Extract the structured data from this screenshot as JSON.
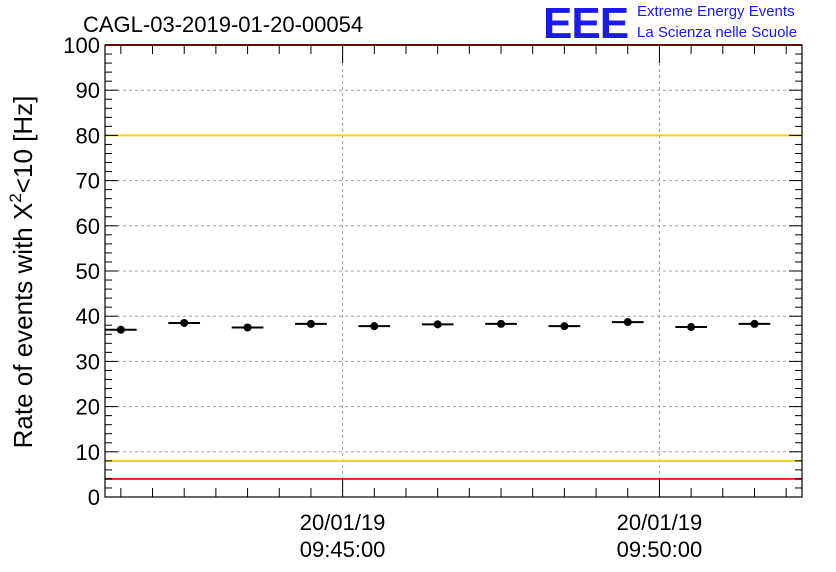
{
  "chart_data": {
    "type": "scatter",
    "title": "CAGL-03-2019-01-20-00054",
    "ylabel_main": "Rate of events with ",
    "ylabel_sym": "X",
    "ylabel_sup": "2",
    "ylabel_tail": "<10 [Hz]",
    "xlabel": "",
    "ylim": [
      0,
      100
    ],
    "y_ticks": [
      "0",
      "10",
      "20",
      "30",
      "40",
      "50",
      "60",
      "70",
      "80",
      "90",
      "100"
    ],
    "x_ticks": [
      {
        "date": "20/01/19",
        "time": "09:45:00",
        "minute": 45
      },
      {
        "date": "20/01/19",
        "time": "09:50:00",
        "minute": 50
      }
    ],
    "xlim_minutes": [
      41.25,
      52.25
    ],
    "grid": true,
    "reference_lines": [
      {
        "value": 100,
        "color": "#e8231d"
      },
      {
        "value": 80,
        "color": "#f2d11c"
      },
      {
        "value": 8,
        "color": "#f2d11c"
      },
      {
        "value": 4,
        "color": "#e8231d"
      }
    ],
    "points": [
      {
        "x_start": 41.25,
        "x_end": 41.75,
        "y": 37.0
      },
      {
        "x_start": 42.25,
        "x_end": 42.75,
        "y": 38.5
      },
      {
        "x_start": 43.25,
        "x_end": 43.75,
        "y": 37.5
      },
      {
        "x_start": 44.25,
        "x_end": 44.75,
        "y": 38.3
      },
      {
        "x_start": 45.25,
        "x_end": 45.75,
        "y": 37.8
      },
      {
        "x_start": 46.25,
        "x_end": 46.75,
        "y": 38.2
      },
      {
        "x_start": 47.25,
        "x_end": 47.75,
        "y": 38.3
      },
      {
        "x_start": 48.25,
        "x_end": 48.75,
        "y": 37.8
      },
      {
        "x_start": 49.25,
        "x_end": 49.75,
        "y": 38.7
      },
      {
        "x_start": 50.25,
        "x_end": 50.75,
        "y": 37.6
      },
      {
        "x_start": 51.25,
        "x_end": 51.75,
        "y": 38.3
      }
    ],
    "marker_color": "#000000"
  },
  "logo": {
    "text": "EEE",
    "line1": "Extreme Energy Events",
    "line2": "La Scienza nelle Scuole",
    "color": "#1a1aee"
  }
}
